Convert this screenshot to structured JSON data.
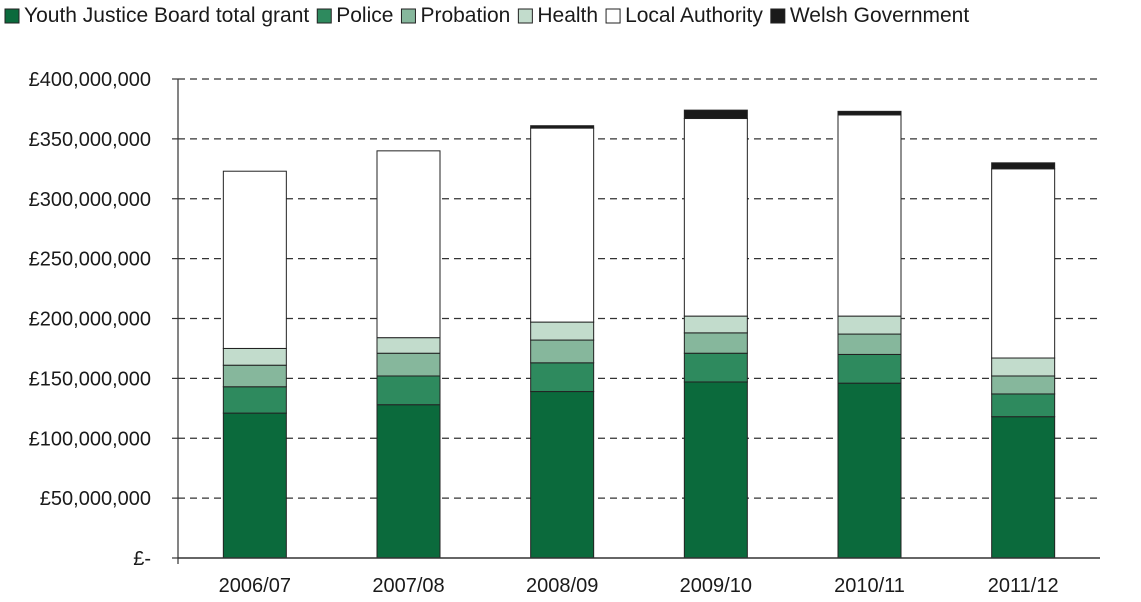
{
  "chart_data": {
    "type": "bar",
    "stacked": true,
    "categories": [
      "2006/07",
      "2007/08",
      "2008/09",
      "2009/10",
      "2010/11",
      "2011/12"
    ],
    "series": [
      {
        "name": "Youth Justice Board total grant",
        "color": "#0b6a3c",
        "values": [
          121000000,
          128000000,
          139000000,
          147000000,
          146000000,
          118000000
        ]
      },
      {
        "name": "Police",
        "color": "#2e8a5e",
        "values": [
          22000000,
          24000000,
          24000000,
          24000000,
          24000000,
          19000000
        ]
      },
      {
        "name": "Probation",
        "color": "#86b79c",
        "values": [
          18000000,
          19000000,
          19000000,
          17000000,
          17000000,
          15000000
        ]
      },
      {
        "name": "Health",
        "color": "#c2dccc",
        "values": [
          14000000,
          13000000,
          15000000,
          14000000,
          15000000,
          15000000
        ]
      },
      {
        "name": "Local Authority",
        "color": "#ffffff",
        "values": [
          148000000,
          156000000,
          162000000,
          165000000,
          168000000,
          158000000
        ]
      },
      {
        "name": "Welsh Government",
        "color": "#1a1a1a",
        "values": [
          0,
          0,
          2000000,
          7000000,
          3000000,
          5000000
        ]
      }
    ],
    "ylim": [
      0,
      400000000
    ],
    "yticks": [
      0,
      50000000,
      100000000,
      150000000,
      200000000,
      250000000,
      300000000,
      350000000,
      400000000
    ],
    "ytick_labels": [
      "£-",
      "£50,000,000",
      "£100,000,000",
      "£150,000,000",
      "£200,000,000",
      "£250,000,000",
      "£300,000,000",
      "£350,000,000",
      "£400,000,000"
    ],
    "grid": "horizontal dashed",
    "legend_position": "top",
    "title": "",
    "xlabel": "",
    "ylabel": ""
  }
}
